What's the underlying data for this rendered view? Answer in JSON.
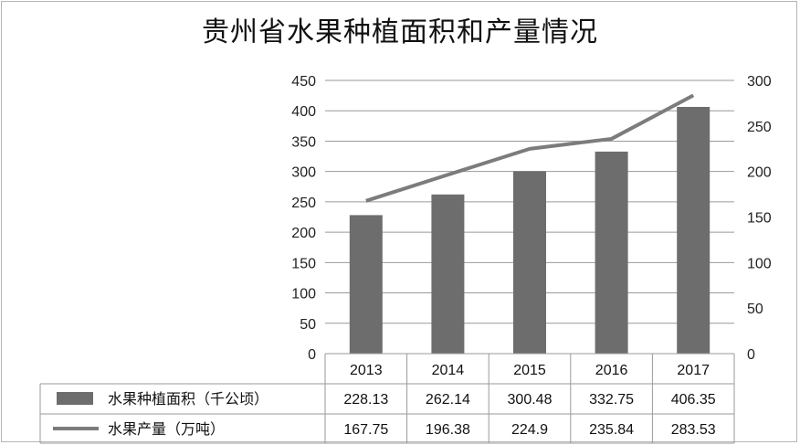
{
  "chart_data": {
    "type": "bar",
    "title": "贵州省水果种植面积和产量情况",
    "categories": [
      "2013",
      "2014",
      "2015",
      "2016",
      "2017"
    ],
    "series": [
      {
        "name": "水果种植面积（千公顷）",
        "type": "bar",
        "axis": "left",
        "values": [
          228.13,
          262.14,
          300.48,
          332.75,
          406.35
        ]
      },
      {
        "name": "水果产量（万吨）",
        "type": "line",
        "axis": "right",
        "values": [
          167.75,
          196.38,
          224.9,
          235.84,
          283.53
        ]
      }
    ],
    "y_left": {
      "ylim": [
        0,
        450
      ],
      "ticks": [
        "0",
        "50",
        "100",
        "150",
        "200",
        "250",
        "300",
        "350",
        "400",
        "450"
      ]
    },
    "y_right": {
      "ylim": [
        0,
        300
      ],
      "ticks": [
        "0",
        "50",
        "100",
        "150",
        "200",
        "250",
        "300"
      ]
    },
    "table": {
      "rows": [
        {
          "label": "水果种植面积（千公顷）",
          "values": [
            "228.13",
            "262.14",
            "300.48",
            "332.75",
            "406.35"
          ]
        },
        {
          "label": "水果产量（万吨）",
          "values": [
            "167.75",
            "196.38",
            "224.9",
            "235.84",
            "283.53"
          ]
        }
      ]
    },
    "grid": true,
    "legend": "data-table",
    "colors": {
      "bar": "#6d6d6d",
      "line": "#7c7c7c",
      "grid": "#9a9a9a"
    }
  }
}
